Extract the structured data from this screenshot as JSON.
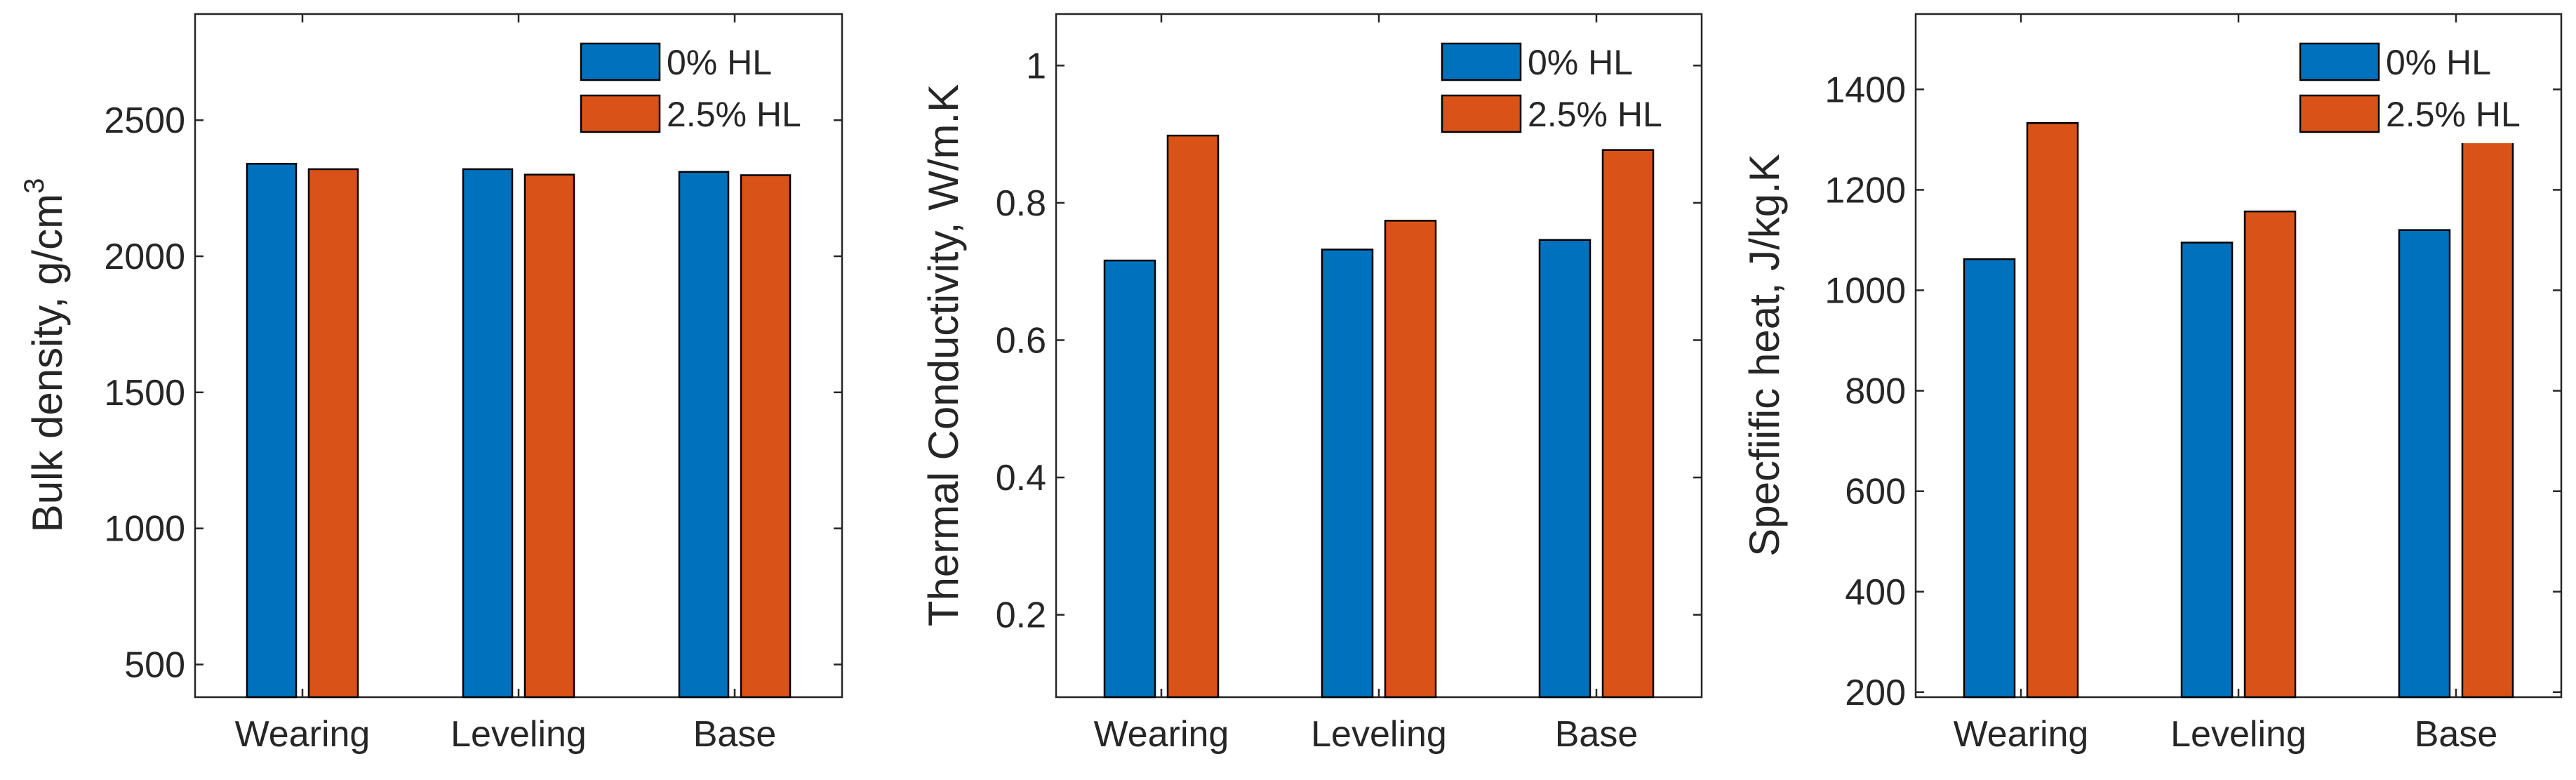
{
  "colors": {
    "series_0": "#0072BD",
    "series_1": "#D95319",
    "axis": "#262626",
    "background": "#FFFFFF"
  },
  "chart_data": [
    {
      "type": "bar",
      "title": "",
      "xlabel": "",
      "ylabel": "Bulk density, g/cm",
      "ylabel_superscript": "3",
      "categories": [
        "Wearing",
        "Leveling",
        "Base"
      ],
      "series": [
        {
          "name": "0% HL",
          "values": [
            2340,
            2320,
            2310
          ]
        },
        {
          "name": "2.5% HL",
          "values": [
            2320,
            2300,
            2298
          ]
        }
      ],
      "ylim": [
        380,
        2890
      ],
      "yticks": [
        500,
        1000,
        1500,
        2000,
        2500
      ],
      "yticklabels": [
        "500",
        "1000",
        "1500",
        "2000",
        "2500"
      ],
      "legend": "top-right",
      "grid": false
    },
    {
      "type": "bar",
      "title": "",
      "xlabel": "",
      "ylabel": "Thermal Conductivity, W/m.K",
      "ylabel_superscript": "",
      "categories": [
        "Wearing",
        "Leveling",
        "Base"
      ],
      "series": [
        {
          "name": "0% HL",
          "values": [
            0.716,
            0.732,
            0.746
          ]
        },
        {
          "name": "2.5% HL",
          "values": [
            0.898,
            0.774,
            0.877
          ]
        }
      ],
      "ylim": [
        0.08,
        1.075
      ],
      "yticks": [
        0.2,
        0.4,
        0.6,
        0.8,
        1
      ],
      "yticklabels": [
        "0.2",
        "0.4",
        "0.6",
        "0.8",
        "1"
      ],
      "legend": "top-right",
      "grid": false
    },
    {
      "type": "bar",
      "title": "",
      "xlabel": "",
      "ylabel": "Specfiific heat, J/kg.K",
      "ylabel_superscript": "",
      "categories": [
        "Wearing",
        "Leveling",
        "Base"
      ],
      "series": [
        {
          "name": "0% HL",
          "values": [
            1062,
            1095,
            1120
          ]
        },
        {
          "name": "2.5% HL",
          "values": [
            1333,
            1157,
            1305
          ]
        }
      ],
      "ylim": [
        190,
        1550
      ],
      "yticks": [
        200,
        400,
        600,
        800,
        1000,
        1200,
        1400
      ],
      "yticklabels": [
        "200",
        "400",
        "600",
        "800",
        "1000",
        "1200",
        "1400"
      ],
      "legend": "top-right",
      "grid": false
    }
  ]
}
